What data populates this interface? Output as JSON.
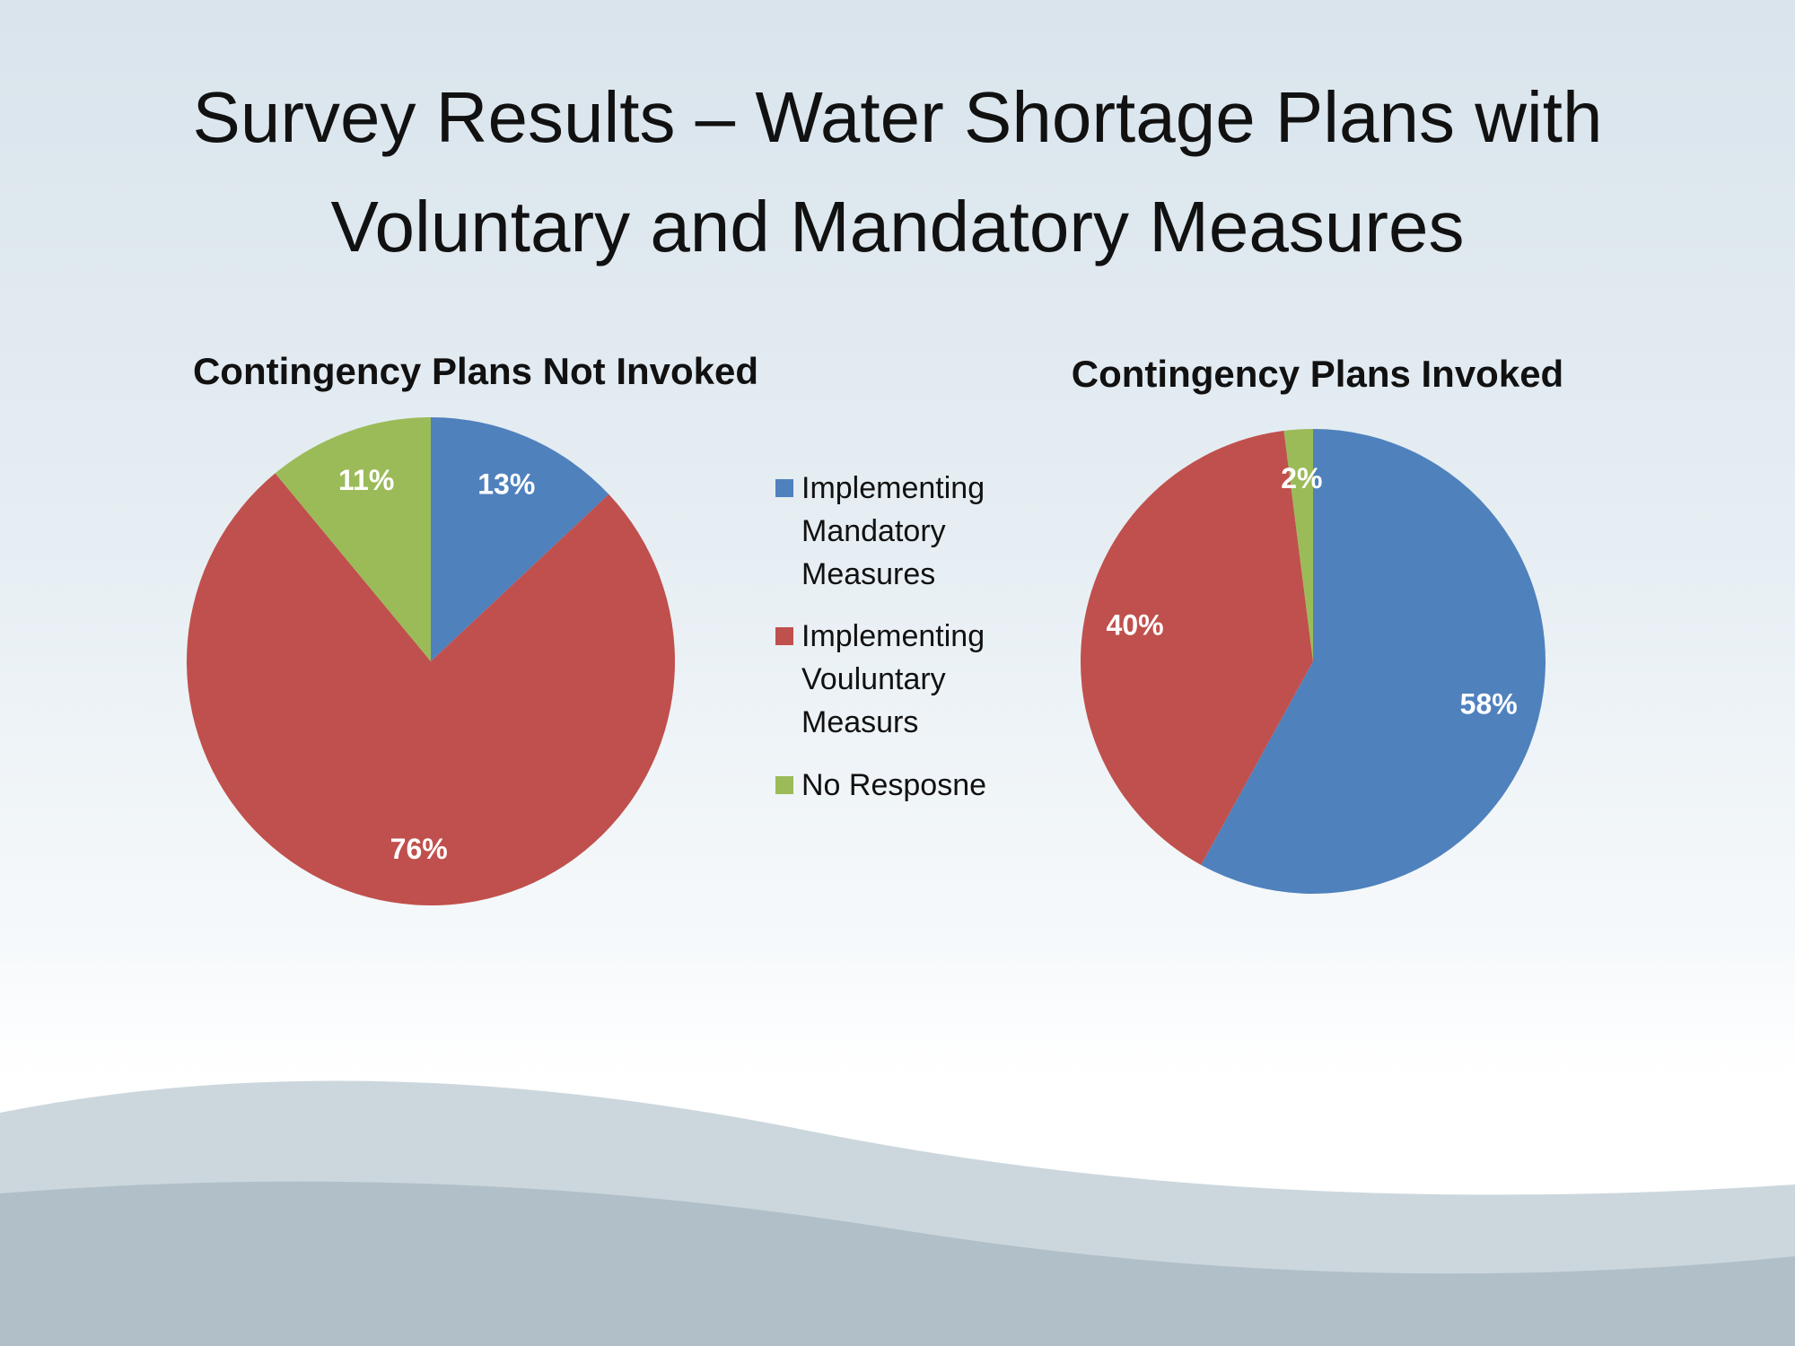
{
  "title": "Survey Results – Water Shortage Plans with Voluntary and Mandatory Measures",
  "legend": [
    {
      "name": "Implementing Mandatory Measures",
      "color": "#4f81bd"
    },
    {
      "name": "Implementing Vouluntary Measurs",
      "color": "#c0504d"
    },
    {
      "name": "No Resposne",
      "color": "#9bbb59"
    }
  ],
  "chart_data": [
    {
      "type": "pie",
      "title": "Contingency Plans Not Invoked",
      "values": [
        13,
        76,
        11
      ],
      "value_labels": [
        "13%",
        "76%",
        "11%"
      ]
    },
    {
      "type": "pie",
      "title": "Contingency Plans Invoked",
      "values": [
        58,
        40,
        2
      ],
      "value_labels": [
        "58%",
        "40%",
        "2%"
      ]
    }
  ]
}
